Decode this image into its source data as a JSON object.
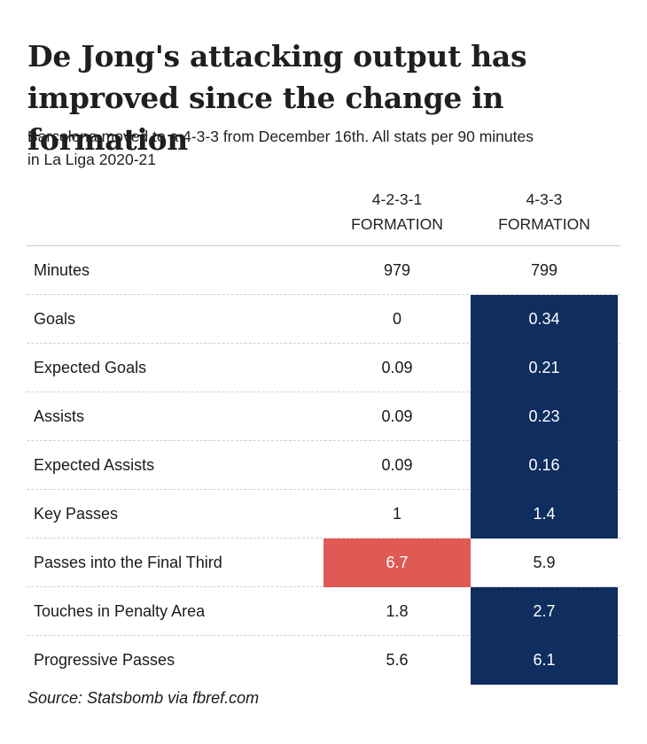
{
  "title_line1": "De Jong's attacking output has",
  "title_line2": "improved since the change in formation",
  "subtitle_line1": "Barcelona moved to a 4-3-3 from December 16th. All stats per 90 minutes",
  "subtitle_line2": "in La Liga 2020-21",
  "columns": [
    {
      "line1": "4-2-3-1",
      "line2": "FORMATION"
    },
    {
      "line1": "4-3-3",
      "line2": "FORMATION"
    }
  ],
  "colors": {
    "highlight_blue": "#0f2d5e",
    "highlight_red": "#e05a55"
  },
  "chart_data": {
    "type": "table",
    "columns": [
      "4-2-3-1 FORMATION",
      "4-3-3 FORMATION"
    ],
    "rows": [
      {
        "label": "Minutes",
        "values": [
          "979",
          "799"
        ],
        "highlight": [
          null,
          null
        ]
      },
      {
        "label": "Goals",
        "values": [
          "0",
          "0.34"
        ],
        "highlight": [
          null,
          "blue"
        ]
      },
      {
        "label": "Expected Goals",
        "values": [
          "0.09",
          "0.21"
        ],
        "highlight": [
          null,
          "blue"
        ]
      },
      {
        "label": "Assists",
        "values": [
          "0.09",
          "0.23"
        ],
        "highlight": [
          null,
          "blue"
        ]
      },
      {
        "label": "Expected Assists",
        "values": [
          "0.09",
          "0.16"
        ],
        "highlight": [
          null,
          "blue"
        ]
      },
      {
        "label": "Key Passes",
        "values": [
          "1",
          "1.4"
        ],
        "highlight": [
          null,
          "blue"
        ]
      },
      {
        "label": "Passes into the Final Third",
        "values": [
          "6.7",
          "5.9"
        ],
        "highlight": [
          "red",
          null
        ]
      },
      {
        "label": "Touches in Penalty Area",
        "values": [
          "1.8",
          "2.7"
        ],
        "highlight": [
          null,
          "blue"
        ]
      },
      {
        "label": "Progressive Passes",
        "values": [
          "5.6",
          "6.1"
        ],
        "highlight": [
          null,
          "blue"
        ]
      }
    ]
  },
  "source": "Source: Statsbomb via fbref.com"
}
